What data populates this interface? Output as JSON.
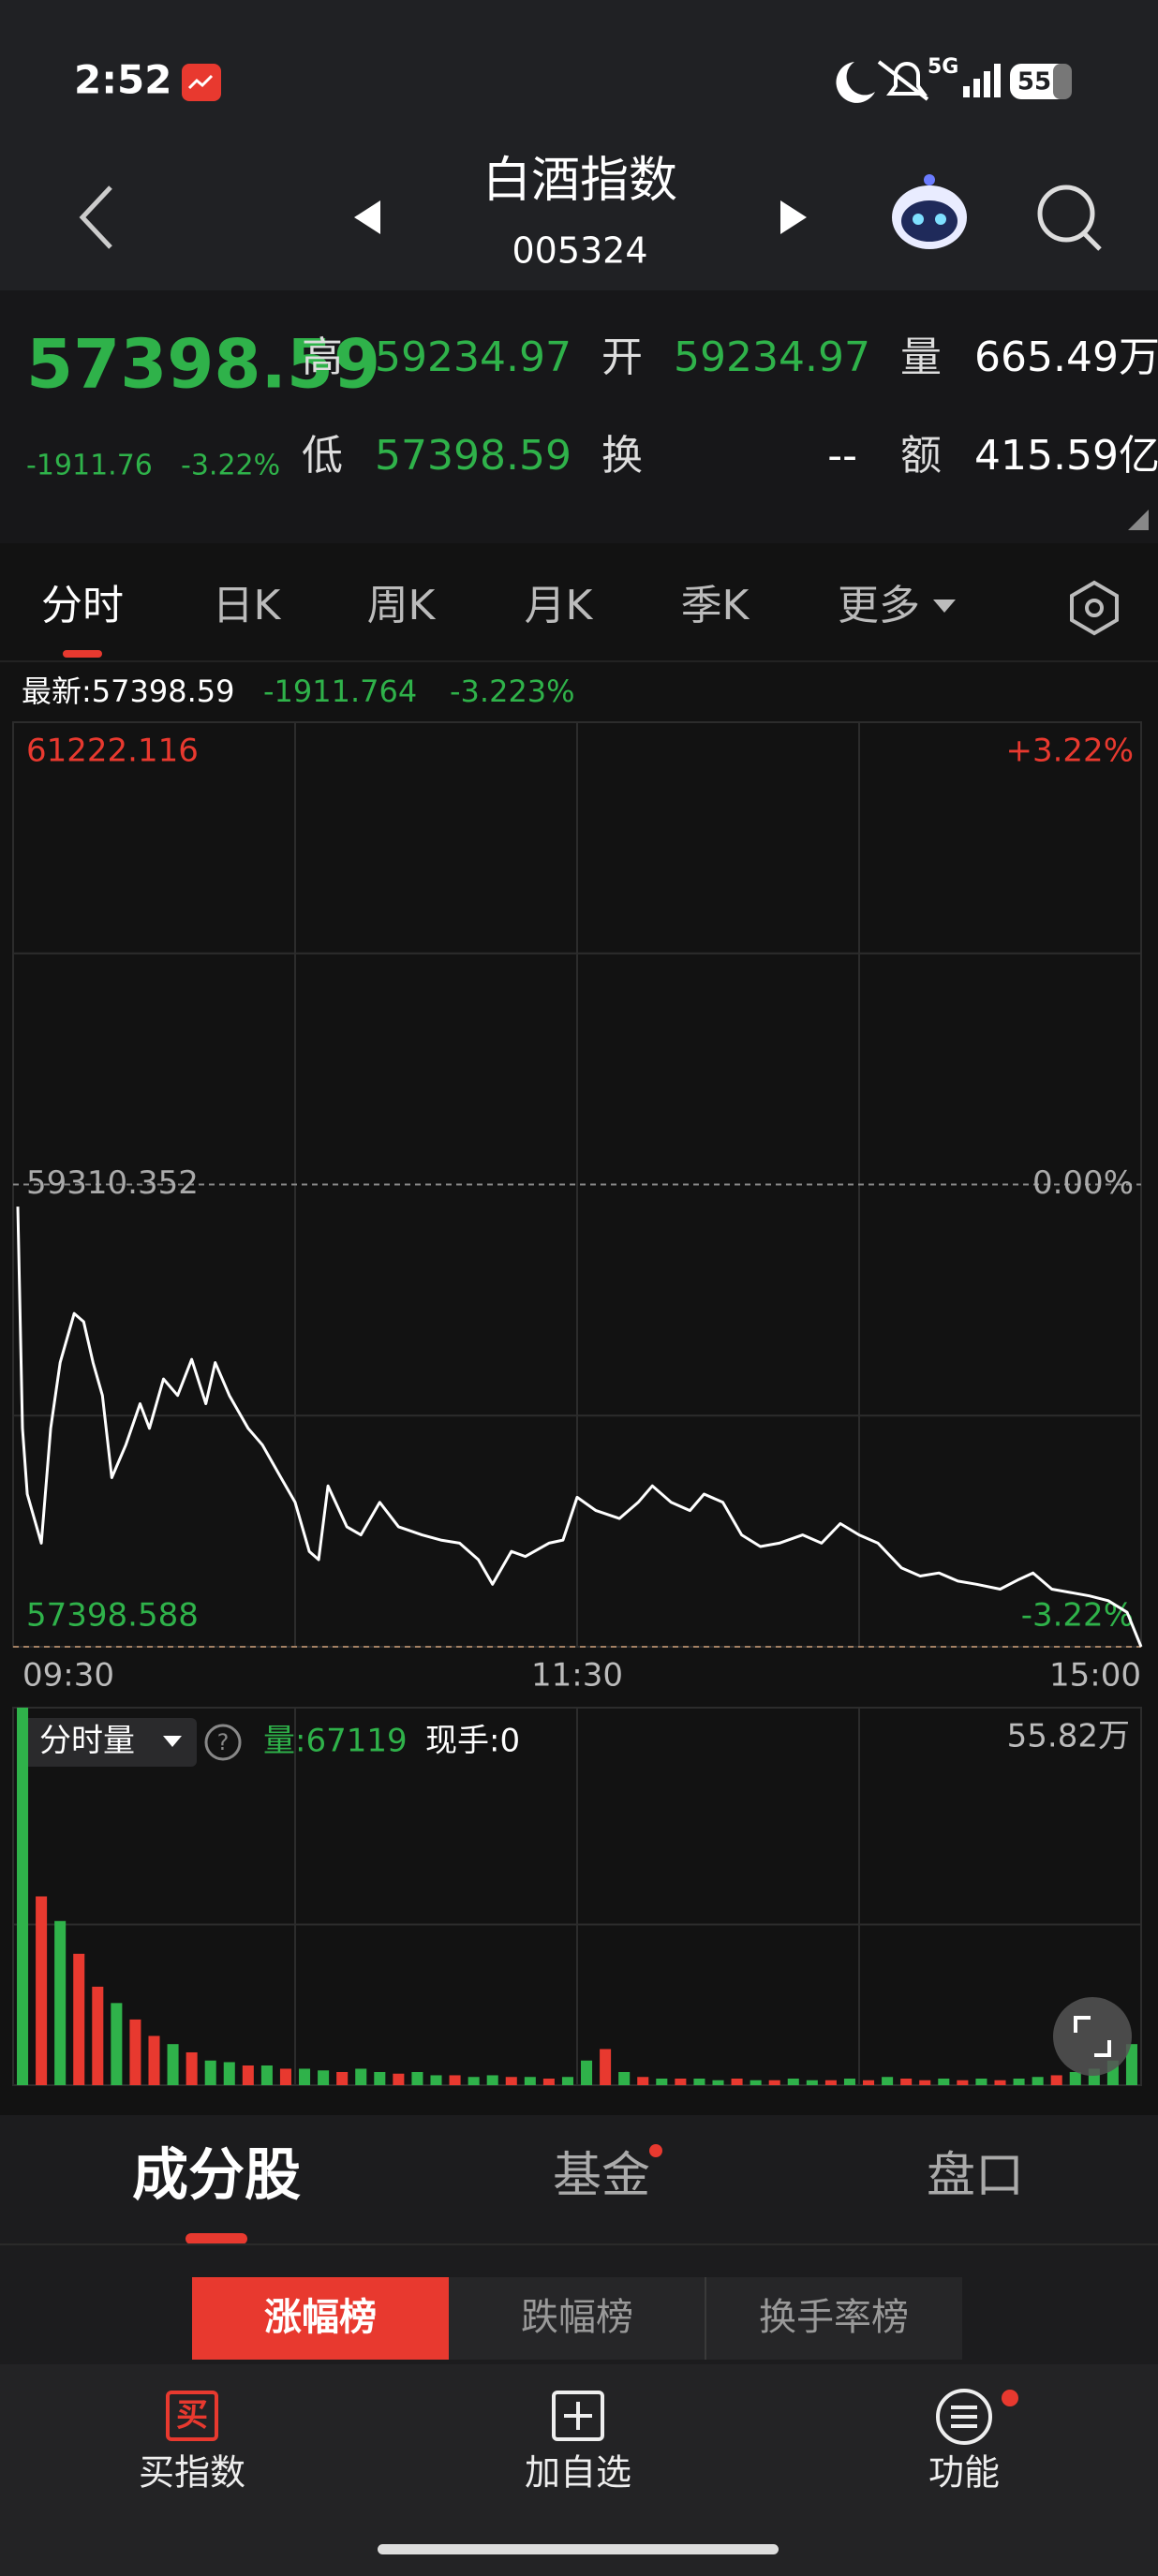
{
  "status_bar": {
    "time": "2:52",
    "network": "5G",
    "battery": "55"
  },
  "header": {
    "title": "白酒指数",
    "code": "005324"
  },
  "quote": {
    "price": "57398.59",
    "change": "-1911.76",
    "change_pct": "-3.22%",
    "high_label": "高",
    "high": "59234.97",
    "open_label": "开",
    "open": "59234.97",
    "volume_label": "量",
    "volume": "665.49万",
    "low_label": "低",
    "low": "57398.59",
    "turnover_label": "换",
    "turnover": "--",
    "amount_label": "额",
    "amount": "415.59亿"
  },
  "tabs": [
    "分时",
    "日K",
    "周K",
    "月K",
    "季K",
    "更多"
  ],
  "chart_info": {
    "latest": "最新:57398.59",
    "change": "-1911.764",
    "change_pct": "-3.223%"
  },
  "chart_data": [
    {
      "type": "line",
      "color": "#ffffff",
      "x": [
        1,
        2,
        3,
        6,
        8,
        10,
        13,
        15,
        17,
        19,
        21,
        24,
        27,
        29,
        32,
        35,
        38,
        41,
        43,
        46,
        50,
        53,
        57,
        60,
        63,
        65,
        67,
        71,
        74,
        78,
        82,
        87,
        91,
        95,
        99,
        102,
        106,
        109,
        114,
        117,
        120,
        124,
        129,
        133,
        136,
        140,
        144,
        147,
        151,
        155,
        159,
        163,
        168,
        172,
        176,
        180,
        184,
        189,
        193,
        197,
        201,
        205,
        210,
        214,
        217,
        221,
        225,
        229,
        233,
        237,
        240
      ],
      "values": [
        59219,
        58302,
        58030,
        57827,
        58302,
        58574,
        58777,
        58743,
        58574,
        58438,
        58098,
        58234,
        58404,
        58302,
        58506,
        58438,
        58587,
        58404,
        58574,
        58438,
        58302,
        58234,
        58098,
        57996,
        57793,
        57759,
        58064,
        57895,
        57861,
        57996,
        57895,
        57861,
        57840,
        57827,
        57759,
        57657,
        57793,
        57772,
        57827,
        57840,
        58017,
        57962,
        57929,
        57996,
        58064,
        57996,
        57962,
        58030,
        57996,
        57861,
        57813,
        57827,
        57861,
        57827,
        57908,
        57861,
        57827,
        57725,
        57691,
        57704,
        57670,
        57657,
        57637,
        57677,
        57704,
        57637,
        57623,
        57609,
        57589,
        57541,
        57398.59
      ],
      "xlim": [
        0,
        240
      ],
      "xticks": [
        {
          "value": 0,
          "label": "09:30"
        },
        {
          "value": 120,
          "label": "11:30"
        },
        {
          "value": 240,
          "label": "15:00"
        }
      ],
      "ylim": [
        57398.588,
        61222.116
      ],
      "yticks": [
        57398.588,
        59310.352,
        61222.116
      ],
      "y2lim": [
        -3.22,
        3.22
      ],
      "y2ticks": [
        {
          "value": -3.22,
          "label": "-3.22%"
        },
        {
          "value": 0,
          "label": "0.00%"
        },
        {
          "value": 3.22,
          "label": "+3.22%"
        }
      ]
    },
    {
      "type": "bar",
      "selector": "分时量",
      "volume_label": "量:67119",
      "hand_label": "现手:0",
      "values": [
        558200,
        279100,
        242700,
        194200,
        145600,
        121400,
        97100,
        72800,
        60700,
        48500,
        36400,
        34000,
        29100,
        29100,
        24300,
        24300,
        21800,
        19400,
        24300,
        19400,
        17000,
        19400,
        14600,
        14600,
        12100,
        14600,
        12100,
        12100,
        9700,
        12100,
        36400,
        53400,
        19400,
        12100,
        9700,
        9700,
        9700,
        7300,
        9700,
        7300,
        7300,
        9700,
        7300,
        7300,
        9700,
        7300,
        12100,
        9700,
        7300,
        9700,
        7300,
        9700,
        7300,
        9700,
        12100,
        14600,
        19400,
        24300,
        36400,
        60700
      ],
      "colors": [
        "#2fb24a",
        "#e8392f",
        "#2fb24a",
        "#e8392f",
        "#e8392f",
        "#2fb24a",
        "#e8392f",
        "#e8392f",
        "#2fb24a",
        "#e8392f",
        "#2fb24a",
        "#2fb24a",
        "#e8392f",
        "#2fb24a",
        "#e8392f",
        "#2fb24a",
        "#2fb24a",
        "#e8392f",
        "#2fb24a",
        "#2fb24a",
        "#e8392f",
        "#2fb24a",
        "#2fb24a",
        "#e8392f",
        "#2fb24a",
        "#2fb24a",
        "#e8392f",
        "#2fb24a",
        "#e8392f",
        "#2fb24a",
        "#2fb24a",
        "#e8392f",
        "#2fb24a",
        "#e8392f",
        "#2fb24a",
        "#e8392f",
        "#2fb24a",
        "#2fb24a",
        "#e8392f",
        "#2fb24a",
        "#e8392f",
        "#2fb24a",
        "#2fb24a",
        "#e8392f",
        "#2fb24a",
        "#e8392f",
        "#2fb24a",
        "#e8392f",
        "#e8392f",
        "#2fb24a",
        "#e8392f",
        "#2fb24a",
        "#e8392f",
        "#2fb24a",
        "#2fb24a",
        "#e8392f",
        "#2fb24a",
        "#2fb24a",
        "#2fb24a",
        "#2fb24a"
      ],
      "ylim": [
        0,
        558200
      ],
      "yticks": [
        {
          "value": 558200,
          "label": "55.82万"
        }
      ]
    }
  ],
  "section_tabs": [
    "成分股",
    "基金",
    "盘口"
  ],
  "rank_tabs": [
    "涨幅榜",
    "跌幅榜",
    "换手率榜"
  ],
  "nav": {
    "buy_icon": "买",
    "items": [
      "买指数",
      "加自选",
      "功能"
    ]
  }
}
